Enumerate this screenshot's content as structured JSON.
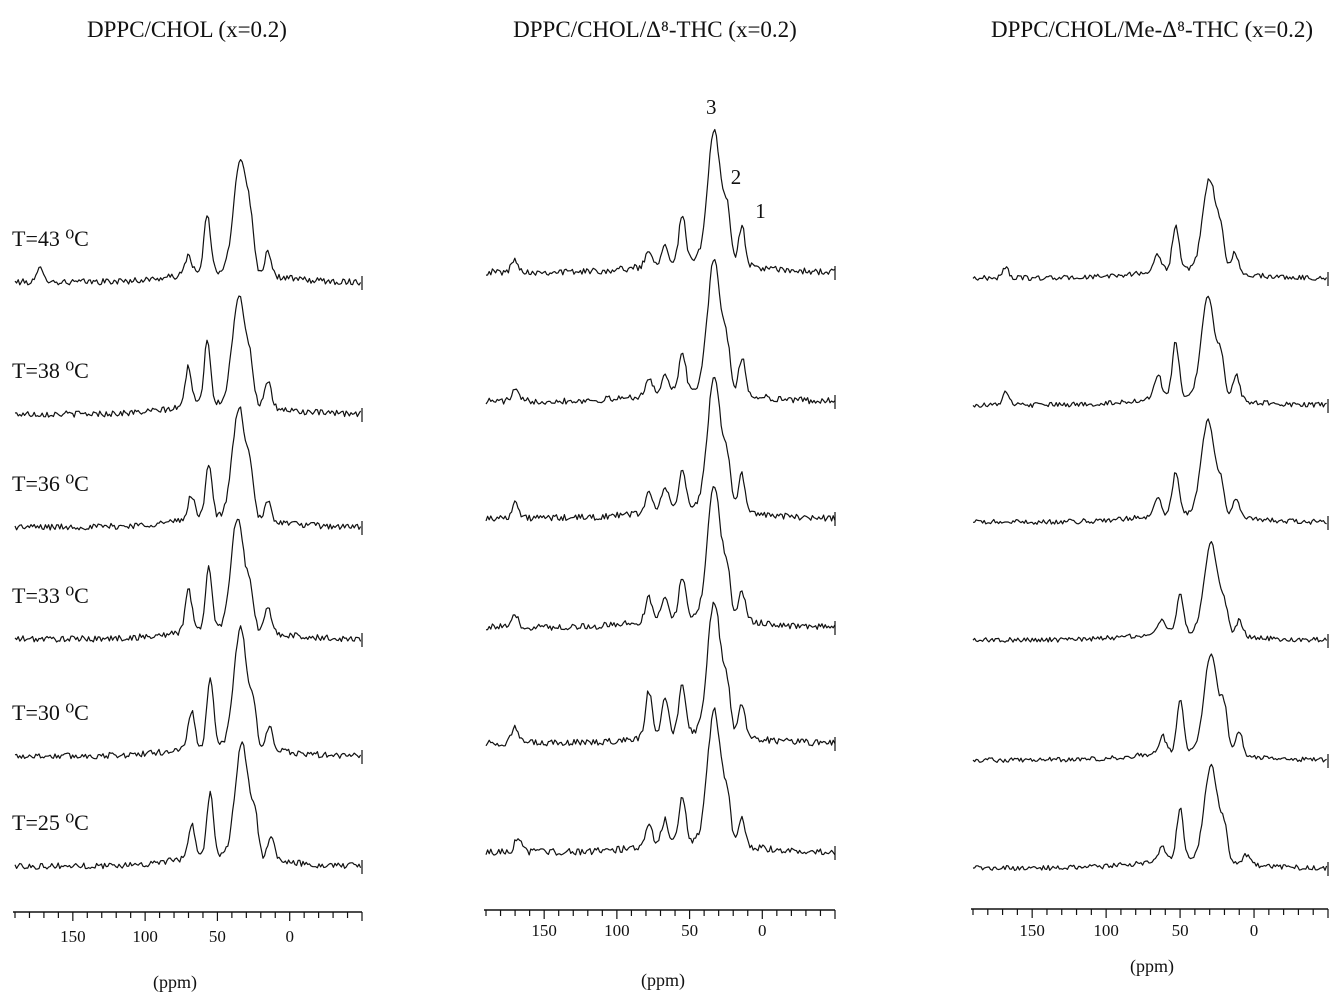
{
  "chart_data": [
    {
      "type": "line",
      "title": "DPPC/CHOL  (x=0.2)",
      "xlabel": "(ppm)",
      "ylabel": "",
      "xlim": [
        190,
        -50
      ],
      "xaxis_reversed": true,
      "xticks": [
        "150",
        "100",
        "50",
        "0"
      ],
      "grid": false,
      "series": [
        {
          "name": "T=43 ⁰C",
          "peaks": [
            {
              "x": 172,
              "h": 0.12
            },
            {
              "x": 70,
              "h": 0.16
            },
            {
              "x": 57,
              "h": 0.46
            },
            {
              "x": 34,
              "h": 0.92
            },
            {
              "x": 27,
              "h": 0.25
            },
            {
              "x": 15,
              "h": 0.2
            }
          ]
        },
        {
          "name": "T=38 ⁰C",
          "peaks": [
            {
              "x": 70,
              "h": 0.32
            },
            {
              "x": 57,
              "h": 0.52
            },
            {
              "x": 35,
              "h": 0.88
            },
            {
              "x": 27,
              "h": 0.22
            },
            {
              "x": 15,
              "h": 0.2
            }
          ]
        },
        {
          "name": "T=36 ⁰C",
          "peaks": [
            {
              "x": 68,
              "h": 0.2
            },
            {
              "x": 56,
              "h": 0.44
            },
            {
              "x": 35,
              "h": 0.88
            },
            {
              "x": 27,
              "h": 0.25
            },
            {
              "x": 15,
              "h": 0.15
            }
          ]
        },
        {
          "name": "T=33 ⁰C",
          "peaks": [
            {
              "x": 70,
              "h": 0.35
            },
            {
              "x": 56,
              "h": 0.5
            },
            {
              "x": 36,
              "h": 0.9
            },
            {
              "x": 27,
              "h": 0.25
            },
            {
              "x": 15,
              "h": 0.2
            }
          ]
        },
        {
          "name": "T=30 ⁰C",
          "peaks": [
            {
              "x": 68,
              "h": 0.3
            },
            {
              "x": 55,
              "h": 0.55
            },
            {
              "x": 34,
              "h": 0.95
            },
            {
              "x": 25,
              "h": 0.25
            },
            {
              "x": 14,
              "h": 0.18
            }
          ]
        },
        {
          "name": "T=25 ⁰C",
          "peaks": [
            {
              "x": 68,
              "h": 0.28
            },
            {
              "x": 55,
              "h": 0.52
            },
            {
              "x": 33,
              "h": 0.92
            },
            {
              "x": 24,
              "h": 0.28
            },
            {
              "x": 13,
              "h": 0.18
            }
          ]
        }
      ]
    },
    {
      "type": "line",
      "title": "DPPC/CHOL/Δ⁸-THC (x=0.2)",
      "xlabel": "(ppm)",
      "ylabel": "",
      "xlim": [
        190,
        -50
      ],
      "xaxis_reversed": true,
      "xticks": [
        "150",
        "100",
        "50",
        "0"
      ],
      "grid": false,
      "peak_labels": [
        {
          "text": "3",
          "x": 33
        },
        {
          "text": "2",
          "x": 25
        },
        {
          "text": "1",
          "x": 15
        }
      ],
      "series": [
        {
          "name": "T=43 ⁰C",
          "peaks": [
            {
              "x": 170,
              "h": 0.1
            },
            {
              "x": 78,
              "h": 0.12
            },
            {
              "x": 67,
              "h": 0.15
            },
            {
              "x": 55,
              "h": 0.36
            },
            {
              "x": 33,
              "h": 1.0
            },
            {
              "x": 24,
              "h": 0.32
            },
            {
              "x": 14,
              "h": 0.3
            }
          ]
        },
        {
          "name": "T=38 ⁰C",
          "peaks": [
            {
              "x": 170,
              "h": 0.08
            },
            {
              "x": 78,
              "h": 0.12
            },
            {
              "x": 67,
              "h": 0.15
            },
            {
              "x": 55,
              "h": 0.3
            },
            {
              "x": 33,
              "h": 1.0
            },
            {
              "x": 24,
              "h": 0.28
            },
            {
              "x": 14,
              "h": 0.28
            }
          ]
        },
        {
          "name": "T=36 ⁰C",
          "peaks": [
            {
              "x": 170,
              "h": 0.12
            },
            {
              "x": 78,
              "h": 0.15
            },
            {
              "x": 67,
              "h": 0.18
            },
            {
              "x": 55,
              "h": 0.3
            },
            {
              "x": 33,
              "h": 1.0
            },
            {
              "x": 24,
              "h": 0.32
            },
            {
              "x": 14,
              "h": 0.28
            }
          ]
        },
        {
          "name": "T=33 ⁰C",
          "peaks": [
            {
              "x": 170,
              "h": 0.08
            },
            {
              "x": 78,
              "h": 0.18
            },
            {
              "x": 67,
              "h": 0.18
            },
            {
              "x": 55,
              "h": 0.3
            },
            {
              "x": 33,
              "h": 1.0
            },
            {
              "x": 24,
              "h": 0.3
            },
            {
              "x": 14,
              "h": 0.22
            }
          ]
        },
        {
          "name": "T=30 ⁰C",
          "peaks": [
            {
              "x": 170,
              "h": 0.12
            },
            {
              "x": 78,
              "h": 0.35
            },
            {
              "x": 67,
              "h": 0.3
            },
            {
              "x": 55,
              "h": 0.38
            },
            {
              "x": 33,
              "h": 1.0
            },
            {
              "x": 24,
              "h": 0.3
            },
            {
              "x": 14,
              "h": 0.25
            }
          ]
        },
        {
          "name": "T=25 ⁰C",
          "peaks": [
            {
              "x": 168,
              "h": 0.12
            },
            {
              "x": 78,
              "h": 0.18
            },
            {
              "x": 67,
              "h": 0.18
            },
            {
              "x": 55,
              "h": 0.35
            },
            {
              "x": 33,
              "h": 1.0
            },
            {
              "x": 24,
              "h": 0.3
            },
            {
              "x": 14,
              "h": 0.2
            }
          ]
        }
      ]
    },
    {
      "type": "line",
      "title": "DPPC/CHOL/Me-Δ⁸-THC (x=0.2)",
      "xlabel": "(ppm)",
      "ylabel": "",
      "xlim": [
        190,
        -50
      ],
      "xaxis_reversed": true,
      "xticks": [
        "150",
        "100",
        "50",
        "0"
      ],
      "grid": false,
      "series": [
        {
          "name": "T=43 ⁰C",
          "peaks": [
            {
              "x": 168,
              "h": 0.1
            },
            {
              "x": 65,
              "h": 0.18
            },
            {
              "x": 53,
              "h": 0.45
            },
            {
              "x": 30,
              "h": 0.92
            },
            {
              "x": 22,
              "h": 0.28
            },
            {
              "x": 13,
              "h": 0.2
            }
          ]
        },
        {
          "name": "T=38 ⁰C",
          "peaks": [
            {
              "x": 168,
              "h": 0.12
            },
            {
              "x": 65,
              "h": 0.25
            },
            {
              "x": 53,
              "h": 0.55
            },
            {
              "x": 31,
              "h": 1.0
            },
            {
              "x": 22,
              "h": 0.35
            },
            {
              "x": 12,
              "h": 0.25
            }
          ]
        },
        {
          "name": "T=36 ⁰C",
          "peaks": [
            {
              "x": 65,
              "h": 0.18
            },
            {
              "x": 53,
              "h": 0.42
            },
            {
              "x": 31,
              "h": 0.95
            },
            {
              "x": 22,
              "h": 0.25
            },
            {
              "x": 12,
              "h": 0.18
            }
          ]
        },
        {
          "name": "T=33 ⁰C",
          "peaks": [
            {
              "x": 62,
              "h": 0.15
            },
            {
              "x": 50,
              "h": 0.38
            },
            {
              "x": 29,
              "h": 0.9
            },
            {
              "x": 20,
              "h": 0.25
            },
            {
              "x": 10,
              "h": 0.15
            }
          ]
        },
        {
          "name": "T=30 ⁰C",
          "peaks": [
            {
              "x": 62,
              "h": 0.18
            },
            {
              "x": 50,
              "h": 0.52
            },
            {
              "x": 29,
              "h": 1.0
            },
            {
              "x": 20,
              "h": 0.38
            },
            {
              "x": 10,
              "h": 0.25
            }
          ]
        },
        {
          "name": "T=25 ⁰C",
          "peaks": [
            {
              "x": 62,
              "h": 0.15
            },
            {
              "x": 50,
              "h": 0.52
            },
            {
              "x": 29,
              "h": 0.95
            },
            {
              "x": 20,
              "h": 0.28
            },
            {
              "x": 5,
              "h": 0.1
            }
          ]
        }
      ]
    }
  ]
}
